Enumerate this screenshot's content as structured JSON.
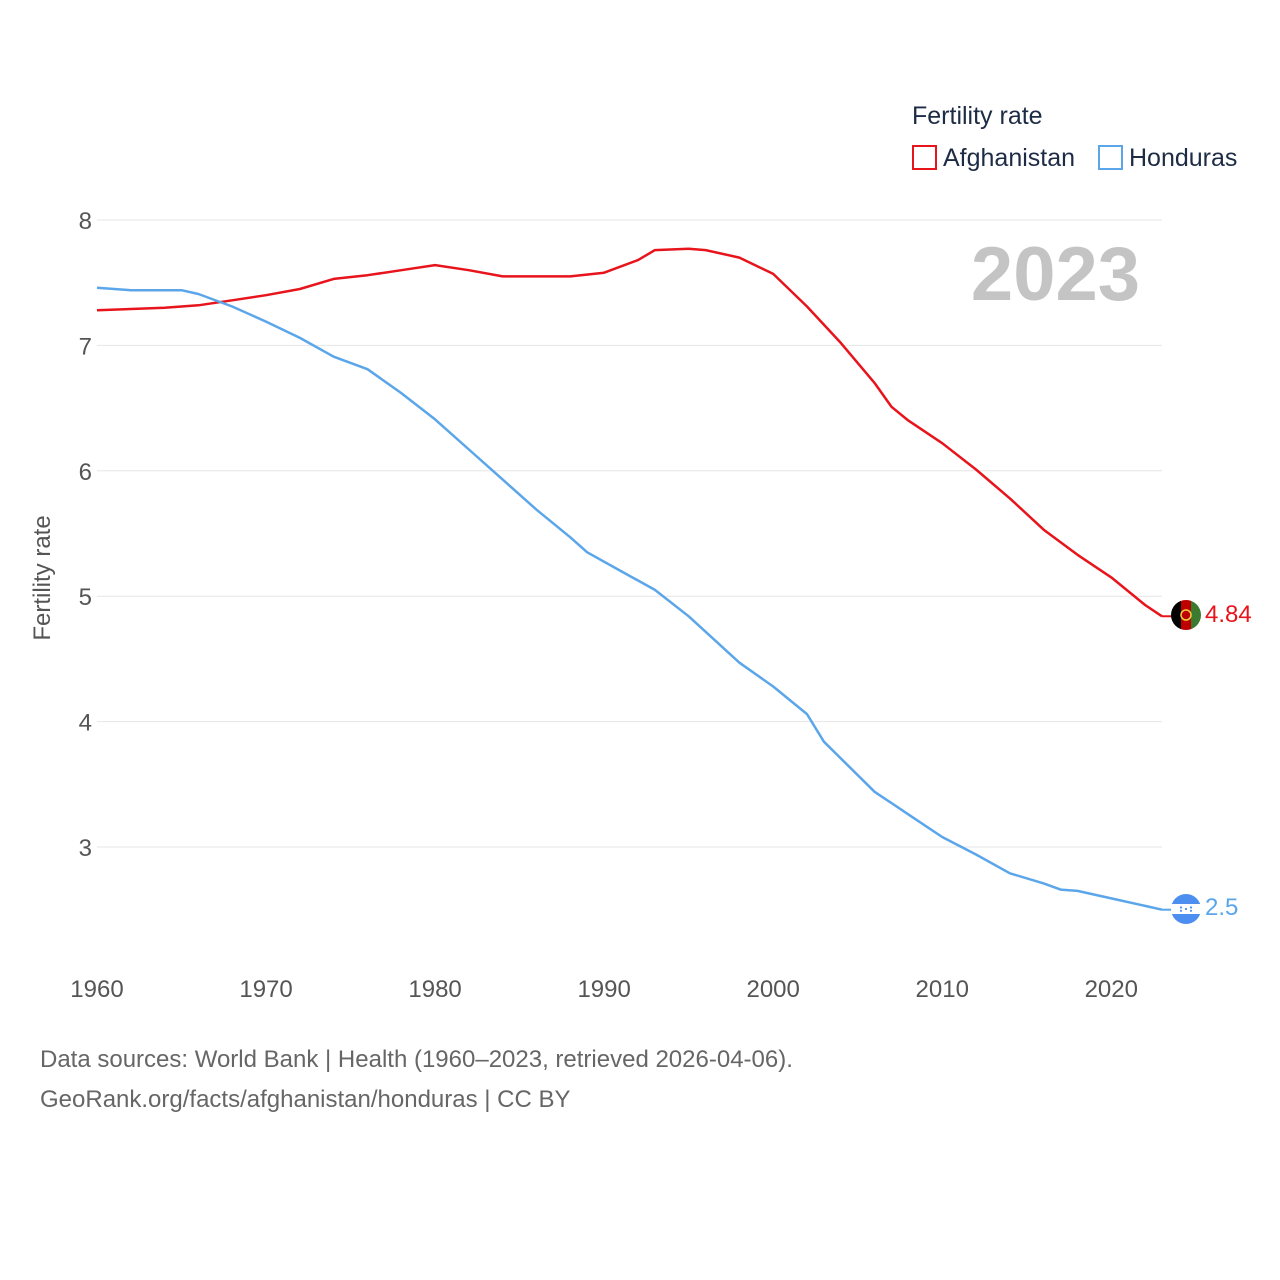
{
  "chart_data": {
    "type": "line",
    "xlabel": "",
    "ylabel": "Fertility rate",
    "xlim": [
      1960,
      2023
    ],
    "ylim": [
      2.0,
      8.2
    ],
    "x_ticks": [
      1960,
      1970,
      1980,
      1990,
      2000,
      2010,
      2020
    ],
    "y_ticks": [
      3,
      4,
      5,
      6,
      7,
      8
    ],
    "grid": true,
    "legend": {
      "title": "Fertility rate",
      "position": "top-right"
    },
    "year_label": "2023",
    "series": [
      {
        "name": "Afghanistan",
        "color": "#e8141c",
        "end_label": "4.84",
        "flag": "afghanistan-flag",
        "points": [
          [
            1960,
            7.28
          ],
          [
            1962,
            7.29
          ],
          [
            1964,
            7.3
          ],
          [
            1966,
            7.32
          ],
          [
            1968,
            7.36
          ],
          [
            1970,
            7.4
          ],
          [
            1972,
            7.45
          ],
          [
            1974,
            7.53
          ],
          [
            1976,
            7.56
          ],
          [
            1978,
            7.6
          ],
          [
            1980,
            7.64
          ],
          [
            1982,
            7.6
          ],
          [
            1984,
            7.55
          ],
          [
            1986,
            7.55
          ],
          [
            1988,
            7.55
          ],
          [
            1990,
            7.58
          ],
          [
            1992,
            7.68
          ],
          [
            1993,
            7.76
          ],
          [
            1995,
            7.77
          ],
          [
            1996,
            7.76
          ],
          [
            1998,
            7.7
          ],
          [
            2000,
            7.57
          ],
          [
            2002,
            7.31
          ],
          [
            2004,
            7.02
          ],
          [
            2006,
            6.7
          ],
          [
            2007,
            6.51
          ],
          [
            2008,
            6.4
          ],
          [
            2010,
            6.22
          ],
          [
            2012,
            6.01
          ],
          [
            2014,
            5.78
          ],
          [
            2016,
            5.53
          ],
          [
            2018,
            5.33
          ],
          [
            2020,
            5.15
          ],
          [
            2022,
            4.93
          ],
          [
            2023,
            4.84
          ]
        ]
      },
      {
        "name": "Honduras",
        "color": "#5ba6ea",
        "end_label": "2.5",
        "flag": "honduras-flag",
        "points": [
          [
            1960,
            7.46
          ],
          [
            1962,
            7.44
          ],
          [
            1964,
            7.44
          ],
          [
            1965,
            7.44
          ],
          [
            1966,
            7.41
          ],
          [
            1968,
            7.31
          ],
          [
            1970,
            7.19
          ],
          [
            1972,
            7.06
          ],
          [
            1974,
            6.91
          ],
          [
            1976,
            6.81
          ],
          [
            1978,
            6.62
          ],
          [
            1980,
            6.41
          ],
          [
            1982,
            6.17
          ],
          [
            1984,
            5.93
          ],
          [
            1986,
            5.69
          ],
          [
            1988,
            5.47
          ],
          [
            1989,
            5.35
          ],
          [
            1991,
            5.2
          ],
          [
            1993,
            5.05
          ],
          [
            1995,
            4.84
          ],
          [
            1998,
            4.47
          ],
          [
            2000,
            4.28
          ],
          [
            2002,
            4.06
          ],
          [
            2003,
            3.84
          ],
          [
            2006,
            3.44
          ],
          [
            2008,
            3.26
          ],
          [
            2010,
            3.08
          ],
          [
            2012,
            2.94
          ],
          [
            2014,
            2.79
          ],
          [
            2016,
            2.71
          ],
          [
            2017,
            2.66
          ],
          [
            2018,
            2.65
          ],
          [
            2020,
            2.59
          ],
          [
            2022,
            2.53
          ],
          [
            2023,
            2.5
          ]
        ]
      }
    ]
  },
  "footer": {
    "line1": "Data sources: World Bank | Health (1960–2023, retrieved 2026-04-06).",
    "line2": "GeoRank.org/facts/afghanistan/honduras | CC BY"
  }
}
